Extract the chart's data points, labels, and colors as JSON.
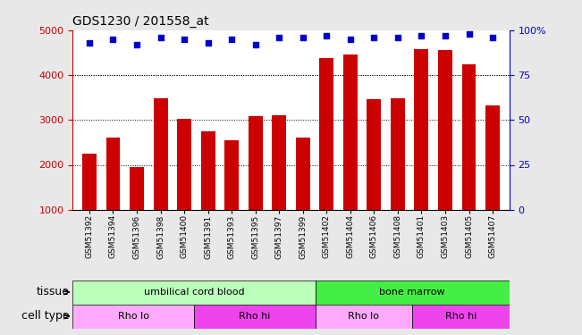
{
  "title": "GDS1230 / 201558_at",
  "samples": [
    "GSM51392",
    "GSM51394",
    "GSM51396",
    "GSM51398",
    "GSM51400",
    "GSM51391",
    "GSM51393",
    "GSM51395",
    "GSM51397",
    "GSM51399",
    "GSM51402",
    "GSM51404",
    "GSM51406",
    "GSM51408",
    "GSM51401",
    "GSM51403",
    "GSM51405",
    "GSM51407"
  ],
  "counts": [
    2250,
    2600,
    1950,
    3480,
    3020,
    2750,
    2550,
    3080,
    3100,
    2600,
    4380,
    4450,
    3470,
    3480,
    4580,
    4550,
    4230,
    3330
  ],
  "percentiles": [
    93,
    95,
    92,
    96,
    95,
    93,
    95,
    92,
    96,
    96,
    97,
    95,
    96,
    96,
    97,
    97,
    98,
    96
  ],
  "bar_color": "#cc0000",
  "dot_color": "#0000cc",
  "ylim_left": [
    1000,
    5000
  ],
  "ylim_right": [
    0,
    100
  ],
  "yticks_left": [
    1000,
    2000,
    3000,
    4000,
    5000
  ],
  "yticks_right": [
    0,
    25,
    50,
    75,
    100
  ],
  "ytick_labels_right": [
    "0",
    "25",
    "50",
    "75",
    "100%"
  ],
  "grid_values": [
    2000,
    3000,
    4000
  ],
  "tissue_groups": [
    {
      "label": "umbilical cord blood",
      "start": 0,
      "end": 10,
      "color": "#bbffbb"
    },
    {
      "label": "bone marrow",
      "start": 10,
      "end": 18,
      "color": "#44ee44"
    }
  ],
  "cell_type_groups": [
    {
      "label": "Rho lo",
      "start": 0,
      "end": 5,
      "color": "#ffaaff"
    },
    {
      "label": "Rho hi",
      "start": 5,
      "end": 10,
      "color": "#ee44ee"
    },
    {
      "label": "Rho lo",
      "start": 10,
      "end": 14,
      "color": "#ffaaff"
    },
    {
      "label": "Rho hi",
      "start": 14,
      "end": 18,
      "color": "#ee44ee"
    }
  ],
  "tissue_label": "tissue",
  "cell_type_label": "cell type",
  "bg_color": "#e8e8e8",
  "plot_bg_color": "#ffffff",
  "legend_count_color": "#cc0000",
  "legend_pct_color": "#0000cc"
}
